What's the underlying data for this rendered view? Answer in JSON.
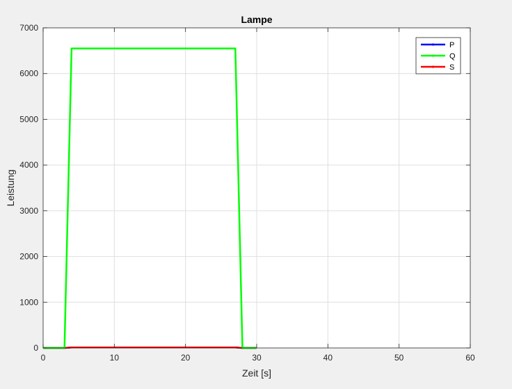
{
  "chart_data": {
    "type": "line",
    "title": "Lampe",
    "xlabel": "Zeit [s]",
    "ylabel": "Leistung",
    "xlim": [
      0,
      60
    ],
    "ylim": [
      0,
      7000
    ],
    "xticks": [
      0,
      10,
      20,
      30,
      40,
      50,
      60
    ],
    "yticks": [
      0,
      1000,
      2000,
      3000,
      4000,
      5000,
      6000,
      7000
    ],
    "grid": true,
    "legend_position": "top-right",
    "series": [
      {
        "name": "P",
        "color": "#0000ff",
        "x": [
          0,
          3,
          4,
          27,
          28,
          30
        ],
        "y": [
          0,
          0,
          10,
          10,
          0,
          0
        ]
      },
      {
        "name": "Q",
        "color": "#00ff00",
        "x": [
          0,
          3,
          4,
          27,
          28,
          30
        ],
        "y": [
          0,
          0,
          6550,
          6550,
          0,
          0
        ]
      },
      {
        "name": "S",
        "color": "#ff0000",
        "x": [
          0,
          3,
          4,
          27,
          28,
          30
        ],
        "y": [
          0,
          0,
          12,
          12,
          0,
          0
        ]
      }
    ]
  }
}
